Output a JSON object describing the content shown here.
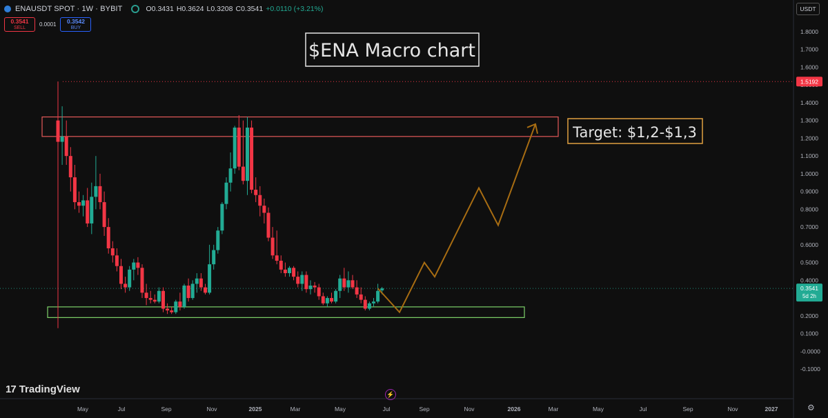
{
  "header": {
    "symbol": "ENAUSDT SPOT · 1W · BYBIT",
    "open": "O0.3431",
    "high": "H0.3624",
    "low": "L0.3208",
    "close": "C0.3541",
    "change": "+0.0110 (+3.21%)"
  },
  "trade": {
    "sell_price": "0.3541",
    "sell_label": "SELL",
    "spread": "0.0001",
    "buy_price": "0.3542",
    "buy_label": "BUY"
  },
  "currency": "USDT",
  "brand": "TradingView",
  "colors": {
    "up": "#22ab94",
    "down": "#f23645",
    "projection": "#a86d12",
    "bg": "#0f0f0f"
  },
  "chart_data": {
    "type": "candlestick",
    "title": "$ENA Macro chart",
    "target_label": "Target: $1,2-$1,3",
    "y_ticks": [
      "1.8000",
      "1.7000",
      "1.6000",
      "1.5000",
      "1.4000",
      "1.3000",
      "1.2000",
      "1.1000",
      "1.0000",
      "0.9000",
      "0.8000",
      "0.7000",
      "0.6000",
      "0.5000",
      "0.4000",
      "0.3000",
      "0.2000",
      "0.1000",
      "-0.0000",
      "-0.1000"
    ],
    "x_ticks": [
      "May",
      "Jul",
      "Sep",
      "Nov",
      "2025",
      "Mar",
      "May",
      "Jul",
      "Sep",
      "Nov",
      "2026",
      "Mar",
      "May",
      "Jul",
      "Sep",
      "Nov",
      "2027"
    ],
    "ylim": [
      -0.12,
      1.86
    ],
    "high_line": {
      "value": 1.5192,
      "label": "1.5192"
    },
    "last_price": {
      "value": 0.3541,
      "label": "0.3541",
      "sublabel": "5d 2h"
    },
    "resistance_zone": [
      1.21,
      1.32
    ],
    "support_zone": [
      0.19,
      0.25
    ],
    "candles": [
      [
        1.3,
        1.52,
        0.13,
        1.18
      ],
      [
        1.18,
        1.38,
        1.05,
        1.21
      ],
      [
        1.21,
        1.3,
        1.05,
        1.1
      ],
      [
        1.1,
        1.15,
        0.9,
        0.98
      ],
      [
        0.98,
        1.05,
        0.8,
        0.84
      ],
      [
        0.84,
        0.9,
        0.78,
        0.82
      ],
      [
        0.82,
        0.88,
        0.76,
        0.85
      ],
      [
        0.85,
        0.92,
        0.7,
        0.72
      ],
      [
        0.72,
        0.95,
        0.66,
        0.87
      ],
      [
        0.87,
        1.1,
        0.8,
        0.93
      ],
      [
        0.93,
        1.0,
        0.8,
        0.84
      ],
      [
        0.84,
        0.9,
        0.65,
        0.7
      ],
      [
        0.7,
        0.75,
        0.55,
        0.58
      ],
      [
        0.58,
        0.62,
        0.5,
        0.54
      ],
      [
        0.54,
        0.58,
        0.45,
        0.48
      ],
      [
        0.48,
        0.52,
        0.35,
        0.38
      ],
      [
        0.38,
        0.42,
        0.33,
        0.36
      ],
      [
        0.36,
        0.48,
        0.34,
        0.46
      ],
      [
        0.46,
        0.52,
        0.4,
        0.5
      ],
      [
        0.5,
        0.53,
        0.43,
        0.47
      ],
      [
        0.47,
        0.49,
        0.3,
        0.33
      ],
      [
        0.33,
        0.38,
        0.26,
        0.3
      ],
      [
        0.3,
        0.34,
        0.27,
        0.29
      ],
      [
        0.29,
        0.32,
        0.27,
        0.28
      ],
      [
        0.28,
        0.36,
        0.27,
        0.34
      ],
      [
        0.34,
        0.36,
        0.22,
        0.24
      ],
      [
        0.24,
        0.27,
        0.21,
        0.23
      ],
      [
        0.23,
        0.25,
        0.21,
        0.22
      ],
      [
        0.22,
        0.29,
        0.21,
        0.28
      ],
      [
        0.28,
        0.33,
        0.23,
        0.25
      ],
      [
        0.25,
        0.38,
        0.24,
        0.37
      ],
      [
        0.37,
        0.41,
        0.28,
        0.3
      ],
      [
        0.3,
        0.4,
        0.29,
        0.38
      ],
      [
        0.38,
        0.44,
        0.33,
        0.41
      ],
      [
        0.41,
        0.44,
        0.34,
        0.36
      ],
      [
        0.36,
        0.38,
        0.32,
        0.33
      ],
      [
        0.33,
        0.6,
        0.32,
        0.49
      ],
      [
        0.49,
        0.6,
        0.46,
        0.57
      ],
      [
        0.57,
        0.7,
        0.55,
        0.68
      ],
      [
        0.68,
        0.84,
        0.66,
        0.83
      ],
      [
        0.83,
        0.98,
        0.8,
        0.95
      ],
      [
        0.95,
        1.12,
        0.9,
        1.03
      ],
      [
        1.03,
        1.27,
        1.0,
        1.26
      ],
      [
        1.26,
        1.33,
        1.02,
        1.04
      ],
      [
        1.04,
        1.3,
        0.94,
        0.96
      ],
      [
        0.96,
        1.32,
        0.88,
        1.26
      ],
      [
        1.26,
        1.3,
        0.89,
        0.91
      ],
      [
        0.91,
        0.98,
        0.84,
        0.88
      ],
      [
        0.88,
        0.93,
        0.76,
        0.82
      ],
      [
        0.82,
        0.86,
        0.72,
        0.78
      ],
      [
        0.78,
        0.81,
        0.62,
        0.64
      ],
      [
        0.64,
        0.7,
        0.52,
        0.54
      ],
      [
        0.54,
        0.68,
        0.49,
        0.51
      ],
      [
        0.51,
        0.54,
        0.44,
        0.46
      ],
      [
        0.46,
        0.5,
        0.42,
        0.44
      ],
      [
        0.44,
        0.48,
        0.42,
        0.47
      ],
      [
        0.47,
        0.48,
        0.4,
        0.42
      ],
      [
        0.42,
        0.45,
        0.36,
        0.38
      ],
      [
        0.38,
        0.45,
        0.34,
        0.43
      ],
      [
        0.43,
        0.45,
        0.33,
        0.35
      ],
      [
        0.35,
        0.4,
        0.32,
        0.37
      ],
      [
        0.37,
        0.39,
        0.33,
        0.36
      ],
      [
        0.36,
        0.38,
        0.29,
        0.31
      ],
      [
        0.31,
        0.33,
        0.26,
        0.27
      ],
      [
        0.27,
        0.31,
        0.25,
        0.3
      ],
      [
        0.3,
        0.33,
        0.27,
        0.28
      ],
      [
        0.28,
        0.35,
        0.27,
        0.34
      ],
      [
        0.34,
        0.43,
        0.3,
        0.41
      ],
      [
        0.41,
        0.47,
        0.34,
        0.36
      ],
      [
        0.36,
        0.45,
        0.33,
        0.4
      ],
      [
        0.4,
        0.43,
        0.35,
        0.36
      ],
      [
        0.36,
        0.4,
        0.3,
        0.32
      ],
      [
        0.32,
        0.36,
        0.27,
        0.29
      ],
      [
        0.29,
        0.31,
        0.23,
        0.24
      ],
      [
        0.24,
        0.28,
        0.23,
        0.27
      ],
      [
        0.27,
        0.3,
        0.25,
        0.28
      ],
      [
        0.28,
        0.38,
        0.27,
        0.34
      ],
      [
        0.3431,
        0.3624,
        0.3208,
        0.3541
      ]
    ],
    "projection": [
      0.3541,
      0.22,
      0.5,
      0.42,
      0.92,
      0.71,
      1.28
    ]
  }
}
